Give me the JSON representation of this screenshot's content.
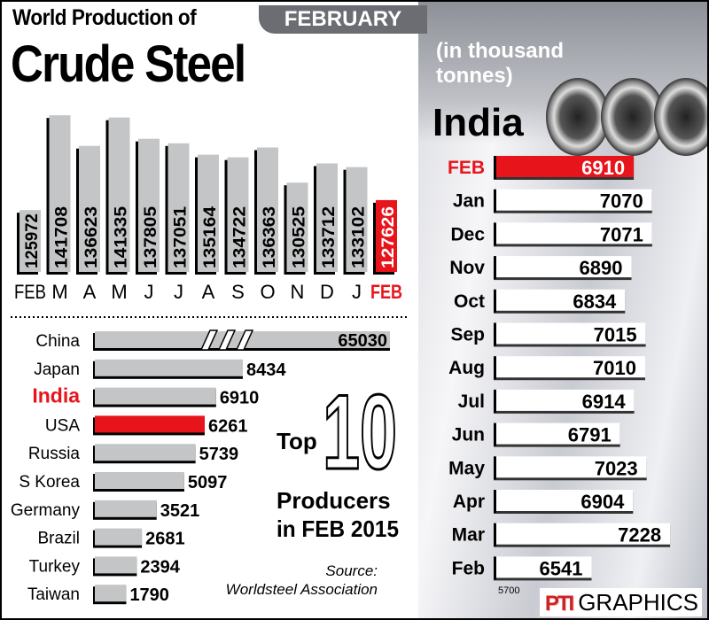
{
  "title_line1": "World Production of",
  "title_line2": "Crude Steel",
  "period_banner": "FEBRUARY 2015",
  "units": [
    "(in thousand",
    "tonnes)"
  ],
  "source": [
    "Source:",
    "Worldsteel Association"
  ],
  "branding": {
    "logo": "PTI",
    "text": "GRAPHICS"
  },
  "colors": {
    "highlight": "#e8141b",
    "bar": "#c4c5c6",
    "bar_outline": "#000000"
  },
  "chart_data": [
    {
      "type": "bar",
      "title": "World Production of Crude Steel",
      "categories": [
        "FEB",
        "M",
        "A",
        "M",
        "J",
        "J",
        "A",
        "S",
        "O",
        "N",
        "D",
        "J",
        "FEB"
      ],
      "values": [
        125972,
        141708,
        136623,
        141335,
        137805,
        137051,
        135164,
        134722,
        136363,
        130525,
        133712,
        133102,
        127626
      ],
      "highlight_index": 12,
      "orientation": "vertical",
      "data_labels": "rotated inside bars"
    },
    {
      "type": "bar",
      "orientation": "horizontal",
      "title_parts": [
        "Top",
        "10",
        "Producers",
        "in FEB 2015"
      ],
      "categories": [
        "China",
        "Japan",
        "India",
        "USA",
        "Russia",
        "S Korea",
        "Germany",
        "Brazil",
        "Turkey",
        "Taiwan"
      ],
      "values": [
        65030,
        8434,
        6910,
        6261,
        5739,
        5097,
        3521,
        2681,
        2394,
        1790
      ],
      "highlight_label": "India",
      "highlight_bar": "USA",
      "broken_axis_bar": "China"
    },
    {
      "type": "bar",
      "orientation": "horizontal",
      "title": "India",
      "categories": [
        "FEB",
        "Jan",
        "Dec",
        "Nov",
        "Oct",
        "Sep",
        "Aug",
        "Jul",
        "Jun",
        "May",
        "Apr",
        "Mar",
        "Feb"
      ],
      "values": [
        6910,
        7070,
        7071,
        6890,
        6834,
        7015,
        7010,
        6914,
        6791,
        7023,
        6904,
        7228,
        6541
      ],
      "highlight_index": 0,
      "xlim_min": 5700,
      "axis_label": "5700"
    }
  ]
}
